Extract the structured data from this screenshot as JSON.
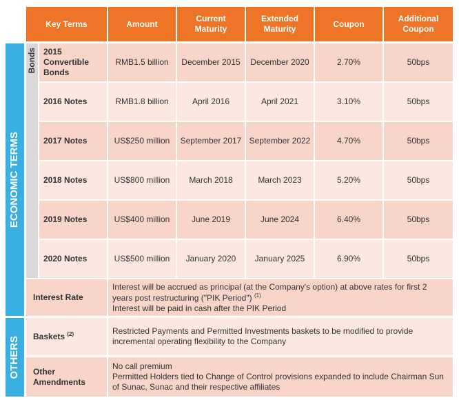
{
  "header": {
    "columns": [
      "Key Terms",
      "Amount",
      "Current Maturity",
      "Extended Maturity",
      "Coupon",
      "Additional Coupon"
    ]
  },
  "sections": [
    "ECONOMIC TERMS",
    "OTHERS"
  ],
  "bonds_label": "Bonds",
  "bonds": [
    [
      "2015 Convertible Bonds",
      "RMB1.5 billion",
      "December 2015",
      "December 2020",
      "2.70%",
      "50bps"
    ],
    [
      "2016 Notes",
      "RMB1.8 billion",
      "April 2016",
      "April 2021",
      "3.10%",
      "50bps"
    ],
    [
      "2017 Notes",
      "US$250 million",
      "September 2017",
      "September 2022",
      "4.70%",
      "50bps"
    ],
    [
      "2018 Notes",
      "US$800 million",
      "March 2018",
      "March 2023",
      "5.20%",
      "50bps"
    ],
    [
      "2019 Notes",
      "US$400 million",
      "June 2019",
      "June 2024",
      "6.40%",
      "50bps"
    ],
    [
      "2020 Notes",
      "US$500 million",
      "January 2020",
      "January 2025",
      "6.90%",
      "50bps"
    ]
  ],
  "interest_rate": {
    "label": "Interest Rate",
    "lines": [
      "Interest will be accrued as principal (at the Company's option) at above rates for first 2 years post restructuring (\"PIK Period\")",
      "Interest will be paid in cash after the PIK Period"
    ],
    "note": "(1)"
  },
  "others": [
    {
      "label": "Baskets",
      "note": "(2)",
      "lines": [
        "Restricted Payments and Permitted Investments baskets to be modified to provide incremental operating flexibility to the Company"
      ]
    },
    {
      "label": "Other Amendments",
      "lines": [
        "No call premium",
        "Permitted Holders tied to Change of Control provisions expanded to include Chairman Sun of Sunac, Sunac and their respective affiliates"
      ]
    }
  ]
}
